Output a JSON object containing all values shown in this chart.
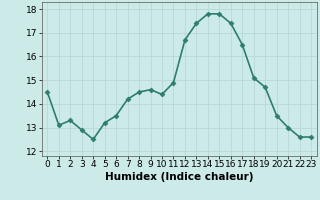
{
  "x": [
    0,
    1,
    2,
    3,
    4,
    5,
    6,
    7,
    8,
    9,
    10,
    11,
    12,
    13,
    14,
    15,
    16,
    17,
    18,
    19,
    20,
    21,
    22,
    23
  ],
  "y": [
    14.5,
    13.1,
    13.3,
    12.9,
    12.5,
    13.2,
    13.5,
    14.2,
    14.5,
    14.6,
    14.4,
    14.9,
    16.7,
    17.4,
    17.8,
    17.8,
    17.4,
    16.5,
    15.1,
    14.7,
    13.5,
    13.0,
    12.6,
    12.6
  ],
  "line_color": "#2e7d6e",
  "marker": "D",
  "marker_size": 2.5,
  "bg_color": "#cceae8",
  "grid_color": "#b8d8d6",
  "xlabel": "Humidex (Indice chaleur)",
  "ylim": [
    11.8,
    18.3
  ],
  "yticks": [
    12,
    13,
    14,
    15,
    16,
    17,
    18
  ],
  "xticks": [
    0,
    1,
    2,
    3,
    4,
    5,
    6,
    7,
    8,
    9,
    10,
    11,
    12,
    13,
    14,
    15,
    16,
    17,
    18,
    19,
    20,
    21,
    22,
    23
  ],
  "xlabel_fontsize": 7.5,
  "tick_fontsize": 6.5,
  "line_width": 1.2
}
